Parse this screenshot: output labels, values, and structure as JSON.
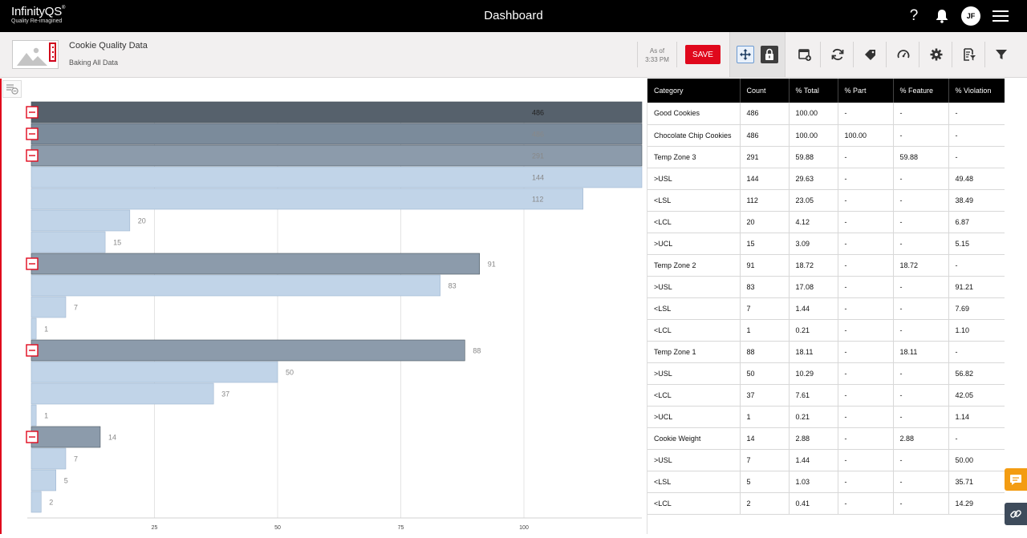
{
  "header": {
    "logo_name": "InfinityQS",
    "logo_tagline": "Quality Re-imagined",
    "title": "Dashboard",
    "help_label": "?",
    "avatar_initials": "JF"
  },
  "toolbar": {
    "dashboard_title": "Cookie Quality Data",
    "dashboard_subtitle": "Baking All Data",
    "as_of_label": "As of",
    "as_of_time": "3:33 PM",
    "save_label": "SAVE"
  },
  "colors": {
    "accent_red": "#e0081c",
    "bar_level0": "#56616c",
    "bar_level1": "#7b8b9b",
    "bar_level2": "#8c9bab",
    "bar_leaf": "#c1d4e8",
    "header_black": "#000000"
  },
  "icons": [
    "image-placeholder-icon",
    "move-icon",
    "lock-icon",
    "add-tile-icon",
    "refresh-icon",
    "tag-icon",
    "gauge-icon",
    "gear-icon",
    "report-filter-icon",
    "filter-icon",
    "chat-icon",
    "link-icon",
    "help-icon",
    "bell-icon",
    "hamburger-menu-icon",
    "collapse-icon"
  ],
  "chart_data": {
    "type": "bar",
    "orientation": "horizontal",
    "categories": [
      "Good Cookies",
      "Chocolate Chip Cookies",
      "Temp Zone 3",
      ">USL",
      "<LSL",
      "<LCL",
      ">UCL",
      "Temp Zone 2",
      ">USL",
      "<LSL",
      "<LCL",
      "Temp Zone 1",
      ">USL",
      "<LCL",
      ">UCL",
      "Cookie Weight",
      ">USL",
      "<LSL",
      "<LCL"
    ],
    "values": [
      486,
      486,
      291,
      144,
      112,
      20,
      15,
      91,
      83,
      7,
      1,
      88,
      50,
      37,
      1,
      14,
      7,
      5,
      2
    ],
    "levels": [
      0,
      1,
      2,
      3,
      3,
      3,
      3,
      2,
      3,
      3,
      3,
      2,
      3,
      3,
      3,
      2,
      3,
      3,
      3
    ],
    "collapsible": [
      true,
      true,
      true,
      false,
      false,
      false,
      false,
      true,
      false,
      false,
      false,
      true,
      false,
      false,
      false,
      true,
      false,
      false,
      false
    ],
    "x_axis_ticks": [
      "25",
      "50",
      "75",
      "100"
    ],
    "x_axis_max": 100,
    "grid": true,
    "label_position": "right of bar"
  },
  "table": {
    "columns": [
      "Category",
      "Count",
      "% Total",
      "% Part",
      "% Feature",
      "% Violation"
    ],
    "rows": [
      [
        "Good Cookies",
        "486",
        "100.00",
        "-",
        "-",
        "-"
      ],
      [
        "Chocolate Chip Cookies",
        "486",
        "100.00",
        "100.00",
        "-",
        "-"
      ],
      [
        "Temp Zone 3",
        "291",
        "59.88",
        "-",
        "59.88",
        "-"
      ],
      [
        ">USL",
        "144",
        "29.63",
        "-",
        "-",
        "49.48"
      ],
      [
        "<LSL",
        "112",
        "23.05",
        "-",
        "-",
        "38.49"
      ],
      [
        "<LCL",
        "20",
        "4.12",
        "-",
        "-",
        "6.87"
      ],
      [
        ">UCL",
        "15",
        "3.09",
        "-",
        "-",
        "5.15"
      ],
      [
        "Temp Zone 2",
        "91",
        "18.72",
        "-",
        "18.72",
        "-"
      ],
      [
        ">USL",
        "83",
        "17.08",
        "-",
        "-",
        "91.21"
      ],
      [
        "<LSL",
        "7",
        "1.44",
        "-",
        "-",
        "7.69"
      ],
      [
        "<LCL",
        "1",
        "0.21",
        "-",
        "-",
        "1.10"
      ],
      [
        "Temp Zone 1",
        "88",
        "18.11",
        "-",
        "18.11",
        "-"
      ],
      [
        ">USL",
        "50",
        "10.29",
        "-",
        "-",
        "56.82"
      ],
      [
        "<LCL",
        "37",
        "7.61",
        "-",
        "-",
        "42.05"
      ],
      [
        ">UCL",
        "1",
        "0.21",
        "-",
        "-",
        "1.14"
      ],
      [
        "Cookie Weight",
        "14",
        "2.88",
        "-",
        "2.88",
        "-"
      ],
      [
        ">USL",
        "7",
        "1.44",
        "-",
        "-",
        "50.00"
      ],
      [
        "<LSL",
        "5",
        "1.03",
        "-",
        "-",
        "35.71"
      ],
      [
        "<LCL",
        "2",
        "0.41",
        "-",
        "-",
        "14.29"
      ]
    ]
  }
}
